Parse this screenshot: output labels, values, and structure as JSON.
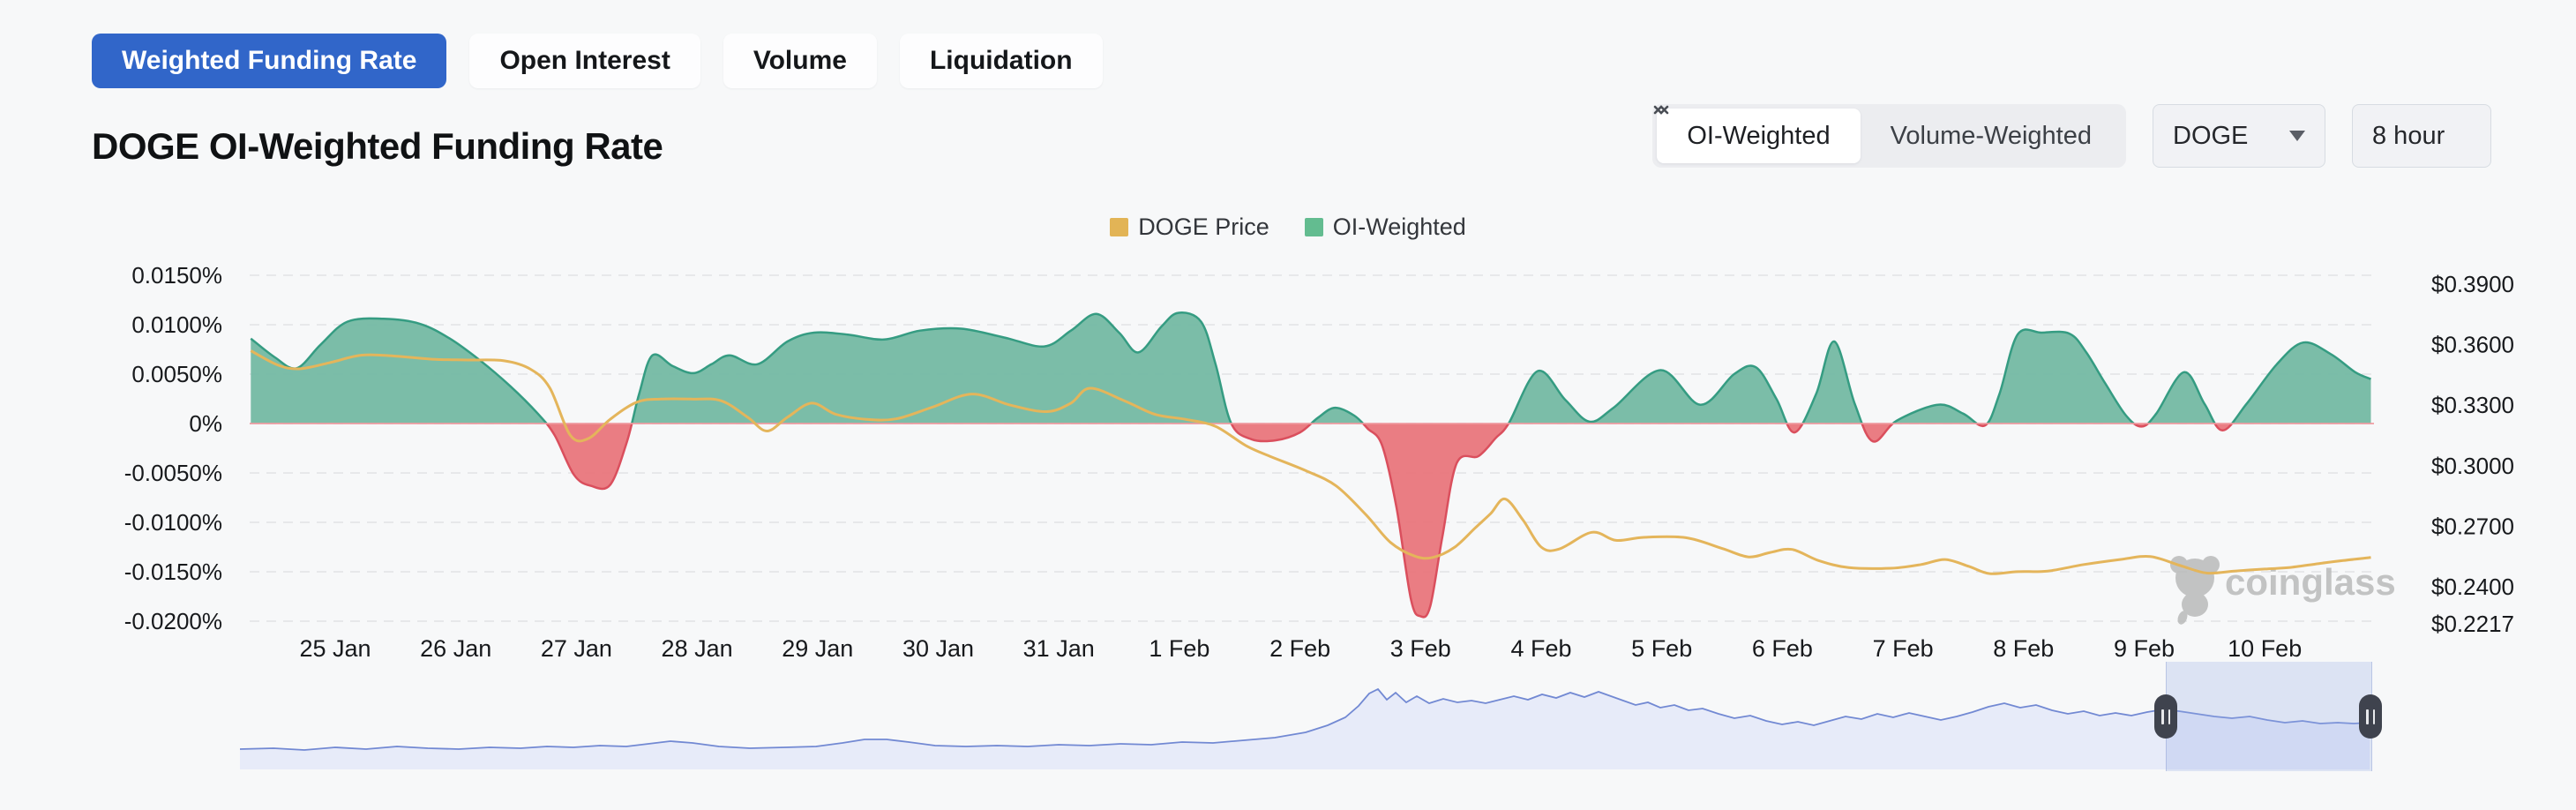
{
  "tabs": [
    {
      "label": "Weighted Funding Rate",
      "active": true
    },
    {
      "label": "Open Interest",
      "active": false
    },
    {
      "label": "Volume",
      "active": false
    },
    {
      "label": "Liquidation",
      "active": false
    }
  ],
  "header": {
    "title": "DOGE OI-Weighted Funding Rate"
  },
  "controls": {
    "weighting": {
      "oi_label": "OI-Weighted",
      "volume_label": "Volume-Weighted",
      "selected": "OI-Weighted"
    },
    "symbol_select": {
      "value": "DOGE"
    },
    "interval_select": {
      "value": "8 hour"
    }
  },
  "legend": [
    {
      "label": "DOGE Price",
      "color": "#e2b456"
    },
    {
      "label": "OI-Weighted",
      "color": "#63bc90"
    }
  ],
  "watermark": {
    "text": "coinglass"
  },
  "colors": {
    "page_bg": "#f7f8f9",
    "active_tab": "#3166c9",
    "funding_pos_fill": "#74b9a3",
    "funding_pos_stroke": "#359c82",
    "funding_neg_fill": "#e9767c",
    "funding_neg_stroke": "#da4f5d",
    "price_line": "#e4b55b",
    "grid": "#e2e3e6",
    "zero_line": "#f09aa0",
    "axis_text": "#17191c",
    "nav_line": "#7289d3",
    "nav_fill": "#e4e9f8",
    "brush_handle": "#3f434e",
    "watermark_gray": "#b6b6b6"
  },
  "chart_data": {
    "type": "area",
    "title": "DOGE OI-Weighted Funding Rate",
    "x_axis": {
      "tick_labels": [
        "25 Jan",
        "26 Jan",
        "27 Jan",
        "28 Jan",
        "29 Jan",
        "30 Jan",
        "31 Jan",
        "1 Feb",
        "2 Feb",
        "3 Feb",
        "4 Feb",
        "5 Feb",
        "6 Feb",
        "7 Feb",
        "8 Feb",
        "9 Feb",
        "10 Feb"
      ],
      "tick_days": [
        0,
        1,
        2,
        3,
        4,
        5,
        6,
        7,
        8,
        9,
        10,
        11,
        12,
        13,
        14,
        15,
        16
      ],
      "domain_days": [
        -0.7,
        16.9
      ]
    },
    "y_left": {
      "name": "OI-Weighted funding rate",
      "units": "%",
      "tick_labels": [
        "0.0150%",
        "0.0100%",
        "0.0050%",
        "0%",
        "-0.0050%",
        "-0.0100%",
        "-0.0150%",
        "-0.0200%"
      ],
      "tick_values": [
        0.015,
        0.01,
        0.005,
        0,
        -0.005,
        -0.01,
        -0.015,
        -0.02
      ]
    },
    "y_right": {
      "name": "DOGE price",
      "units": "USD",
      "tick_labels": [
        "$0.3900",
        "$0.3600",
        "$0.3300",
        "$0.3000",
        "$0.2700",
        "$0.2400",
        "$0.2217"
      ],
      "tick_values": [
        0.39,
        0.36,
        0.33,
        0.3,
        0.27,
        0.24,
        0.2217
      ]
    },
    "series": [
      {
        "name": "OI-Weighted",
        "type": "area",
        "axis": "left",
        "points": [
          [
            -0.7,
            0.0086
          ],
          [
            -0.5,
            0.0067
          ],
          [
            -0.32,
            0.0056
          ],
          [
            -0.12,
            0.008
          ],
          [
            0.1,
            0.0103
          ],
          [
            0.4,
            0.0106
          ],
          [
            0.7,
            0.0101
          ],
          [
            0.95,
            0.0086
          ],
          [
            1.2,
            0.0064
          ],
          [
            1.45,
            0.0038
          ],
          [
            1.68,
            0.001
          ],
          [
            1.82,
            -0.0012
          ],
          [
            1.98,
            -0.0052
          ],
          [
            2.12,
            -0.0063
          ],
          [
            2.28,
            -0.0062
          ],
          [
            2.42,
            -0.0018
          ],
          [
            2.52,
            0.003
          ],
          [
            2.63,
            0.0069
          ],
          [
            2.8,
            0.0058
          ],
          [
            2.97,
            0.0051
          ],
          [
            3.12,
            0.006
          ],
          [
            3.27,
            0.0069
          ],
          [
            3.5,
            0.006
          ],
          [
            3.75,
            0.0083
          ],
          [
            3.97,
            0.0092
          ],
          [
            4.25,
            0.009
          ],
          [
            4.55,
            0.0085
          ],
          [
            4.85,
            0.0094
          ],
          [
            5.19,
            0.0096
          ],
          [
            5.55,
            0.0087
          ],
          [
            5.88,
            0.0078
          ],
          [
            6.1,
            0.0094
          ],
          [
            6.31,
            0.0111
          ],
          [
            6.5,
            0.0092
          ],
          [
            6.66,
            0.0072
          ],
          [
            6.85,
            0.0098
          ],
          [
            6.99,
            0.0112
          ],
          [
            7.18,
            0.0103
          ],
          [
            7.3,
            0.006
          ],
          [
            7.43,
            0.0
          ],
          [
            7.6,
            -0.0016
          ],
          [
            7.8,
            -0.0017
          ],
          [
            8.0,
            -0.0009
          ],
          [
            8.15,
            0.0006
          ],
          [
            8.29,
            0.0016
          ],
          [
            8.45,
            0.0008
          ],
          [
            8.56,
            -0.0005
          ],
          [
            8.68,
            -0.0022
          ],
          [
            8.8,
            -0.0085
          ],
          [
            8.92,
            -0.0178
          ],
          [
            9.0,
            -0.0195
          ],
          [
            9.08,
            -0.0185
          ],
          [
            9.18,
            -0.0115
          ],
          [
            9.3,
            -0.004
          ],
          [
            9.48,
            -0.0033
          ],
          [
            9.62,
            -0.0015
          ],
          [
            9.73,
            0.0
          ],
          [
            9.97,
            0.0053
          ],
          [
            10.2,
            0.0024
          ],
          [
            10.4,
            0.0002
          ],
          [
            10.6,
            0.0016
          ],
          [
            10.99,
            0.0054
          ],
          [
            11.32,
            0.0019
          ],
          [
            11.6,
            0.005
          ],
          [
            11.78,
            0.0057
          ],
          [
            11.95,
            0.0025
          ],
          [
            12.1,
            -0.0009
          ],
          [
            12.28,
            0.003
          ],
          [
            12.43,
            0.0083
          ],
          [
            12.6,
            0.002
          ],
          [
            12.75,
            -0.0018
          ],
          [
            12.95,
            0.0003
          ],
          [
            13.29,
            0.0019
          ],
          [
            13.5,
            0.001
          ],
          [
            13.68,
            -0.0002
          ],
          [
            13.8,
            0.003
          ],
          [
            13.95,
            0.009
          ],
          [
            14.15,
            0.0092
          ],
          [
            14.38,
            0.0091
          ],
          [
            14.52,
            0.0072
          ],
          [
            14.68,
            0.004
          ],
          [
            14.85,
            0.0008
          ],
          [
            14.98,
            -0.0003
          ],
          [
            15.1,
            0.001
          ],
          [
            15.33,
            0.0052
          ],
          [
            15.5,
            0.002
          ],
          [
            15.65,
            -0.0007
          ],
          [
            15.85,
            0.002
          ],
          [
            16.1,
            0.006
          ],
          [
            16.32,
            0.0082
          ],
          [
            16.55,
            0.007
          ],
          [
            16.75,
            0.0052
          ],
          [
            16.88,
            0.0045
          ]
        ]
      },
      {
        "name": "DOGE Price",
        "type": "line",
        "axis": "right",
        "points": [
          [
            -0.7,
            0.357
          ],
          [
            -0.48,
            0.35
          ],
          [
            -0.3,
            0.348
          ],
          [
            -0.05,
            0.351
          ],
          [
            0.22,
            0.3548
          ],
          [
            0.5,
            0.3543
          ],
          [
            0.8,
            0.3528
          ],
          [
            1.1,
            0.3524
          ],
          [
            1.4,
            0.352
          ],
          [
            1.62,
            0.3478
          ],
          [
            1.78,
            0.3385
          ],
          [
            1.95,
            0.315
          ],
          [
            2.1,
            0.3135
          ],
          [
            2.28,
            0.323
          ],
          [
            2.5,
            0.3315
          ],
          [
            2.7,
            0.333
          ],
          [
            2.95,
            0.333
          ],
          [
            3.2,
            0.3322
          ],
          [
            3.42,
            0.324
          ],
          [
            3.58,
            0.3172
          ],
          [
            3.75,
            0.324
          ],
          [
            3.95,
            0.331
          ],
          [
            4.15,
            0.3255
          ],
          [
            4.4,
            0.323
          ],
          [
            4.65,
            0.3232
          ],
          [
            4.95,
            0.329
          ],
          [
            5.28,
            0.3355
          ],
          [
            5.6,
            0.33
          ],
          [
            5.9,
            0.3268
          ],
          [
            6.1,
            0.331
          ],
          [
            6.26,
            0.3384
          ],
          [
            6.55,
            0.332
          ],
          [
            6.8,
            0.3254
          ],
          [
            7.05,
            0.323
          ],
          [
            7.3,
            0.3195
          ],
          [
            7.55,
            0.31
          ],
          [
            7.75,
            0.3047
          ],
          [
            8.05,
            0.2975
          ],
          [
            8.3,
            0.29
          ],
          [
            8.55,
            0.2755
          ],
          [
            8.75,
            0.262
          ],
          [
            8.95,
            0.2552
          ],
          [
            9.1,
            0.2545
          ],
          [
            9.28,
            0.2595
          ],
          [
            9.45,
            0.269
          ],
          [
            9.58,
            0.2762
          ],
          [
            9.7,
            0.2835
          ],
          [
            9.85,
            0.273
          ],
          [
            10.0,
            0.2597
          ],
          [
            10.15,
            0.2587
          ],
          [
            10.42,
            0.267
          ],
          [
            10.62,
            0.263
          ],
          [
            10.85,
            0.2645
          ],
          [
            11.2,
            0.2643
          ],
          [
            11.5,
            0.259
          ],
          [
            11.72,
            0.2548
          ],
          [
            11.9,
            0.257
          ],
          [
            12.08,
            0.2585
          ],
          [
            12.3,
            0.253
          ],
          [
            12.55,
            0.2495
          ],
          [
            12.9,
            0.2492
          ],
          [
            13.15,
            0.251
          ],
          [
            13.35,
            0.2535
          ],
          [
            13.55,
            0.25
          ],
          [
            13.72,
            0.2465
          ],
          [
            13.95,
            0.2475
          ],
          [
            14.2,
            0.2478
          ],
          [
            14.5,
            0.251
          ],
          [
            14.8,
            0.2535
          ],
          [
            15.05,
            0.255
          ],
          [
            15.3,
            0.2505
          ],
          [
            15.52,
            0.2468
          ],
          [
            15.75,
            0.2478
          ],
          [
            16.0,
            0.2488
          ],
          [
            16.2,
            0.2495
          ],
          [
            16.45,
            0.2515
          ],
          [
            16.65,
            0.253
          ],
          [
            16.88,
            0.2545
          ]
        ]
      }
    ]
  },
  "navigator": {
    "baseline_y": 872,
    "points": [
      [
        272,
        849
      ],
      [
        310,
        848
      ],
      [
        345,
        850
      ],
      [
        380,
        847
      ],
      [
        415,
        849
      ],
      [
        450,
        846
      ],
      [
        485,
        848
      ],
      [
        520,
        849
      ],
      [
        555,
        847
      ],
      [
        590,
        848
      ],
      [
        620,
        846
      ],
      [
        650,
        847
      ],
      [
        680,
        845
      ],
      [
        710,
        846
      ],
      [
        735,
        843
      ],
      [
        760,
        840
      ],
      [
        785,
        842
      ],
      [
        815,
        846
      ],
      [
        850,
        848
      ],
      [
        890,
        847
      ],
      [
        925,
        846
      ],
      [
        955,
        842
      ],
      [
        980,
        838
      ],
      [
        1005,
        838
      ],
      [
        1030,
        841
      ],
      [
        1060,
        845
      ],
      [
        1095,
        846
      ],
      [
        1130,
        845
      ],
      [
        1165,
        846
      ],
      [
        1200,
        844
      ],
      [
        1235,
        845
      ],
      [
        1270,
        843
      ],
      [
        1305,
        844
      ],
      [
        1340,
        841
      ],
      [
        1375,
        842
      ],
      [
        1410,
        839
      ],
      [
        1445,
        836
      ],
      [
        1480,
        830
      ],
      [
        1505,
        822
      ],
      [
        1525,
        813
      ],
      [
        1540,
        800
      ],
      [
        1552,
        786
      ],
      [
        1562,
        781
      ],
      [
        1572,
        793
      ],
      [
        1582,
        785
      ],
      [
        1594,
        796
      ],
      [
        1606,
        789
      ],
      [
        1620,
        797
      ],
      [
        1636,
        792
      ],
      [
        1652,
        796
      ],
      [
        1668,
        794
      ],
      [
        1684,
        797
      ],
      [
        1700,
        793
      ],
      [
        1716,
        789
      ],
      [
        1732,
        793
      ],
      [
        1748,
        787
      ],
      [
        1764,
        791
      ],
      [
        1780,
        785
      ],
      [
        1796,
        790
      ],
      [
        1812,
        784
      ],
      [
        1826,
        789
      ],
      [
        1840,
        794
      ],
      [
        1854,
        799
      ],
      [
        1868,
        796
      ],
      [
        1882,
        802
      ],
      [
        1898,
        799
      ],
      [
        1914,
        805
      ],
      [
        1930,
        803
      ],
      [
        1948,
        809
      ],
      [
        1966,
        814
      ],
      [
        1984,
        811
      ],
      [
        2002,
        817
      ],
      [
        2020,
        821
      ],
      [
        2038,
        818
      ],
      [
        2056,
        822
      ],
      [
        2074,
        817
      ],
      [
        2092,
        812
      ],
      [
        2110,
        815
      ],
      [
        2128,
        809
      ],
      [
        2146,
        813
      ],
      [
        2164,
        808
      ],
      [
        2182,
        812
      ],
      [
        2200,
        816
      ],
      [
        2218,
        812
      ],
      [
        2236,
        807
      ],
      [
        2254,
        801
      ],
      [
        2272,
        797
      ],
      [
        2290,
        802
      ],
      [
        2308,
        799
      ],
      [
        2326,
        805
      ],
      [
        2344,
        809
      ],
      [
        2362,
        806
      ],
      [
        2380,
        811
      ],
      [
        2398,
        808
      ],
      [
        2416,
        811
      ],
      [
        2434,
        807
      ],
      [
        2452,
        804
      ],
      [
        2470,
        806
      ],
      [
        2490,
        809
      ],
      [
        2510,
        812
      ],
      [
        2530,
        814
      ],
      [
        2550,
        812
      ],
      [
        2570,
        816
      ],
      [
        2590,
        819
      ],
      [
        2610,
        817
      ],
      [
        2630,
        820
      ],
      [
        2650,
        819
      ],
      [
        2668,
        820
      ],
      [
        2686,
        819
      ]
    ],
    "brush": {
      "x_start": 2455,
      "x_end": 2687,
      "y_top": 750,
      "height": 124
    }
  }
}
